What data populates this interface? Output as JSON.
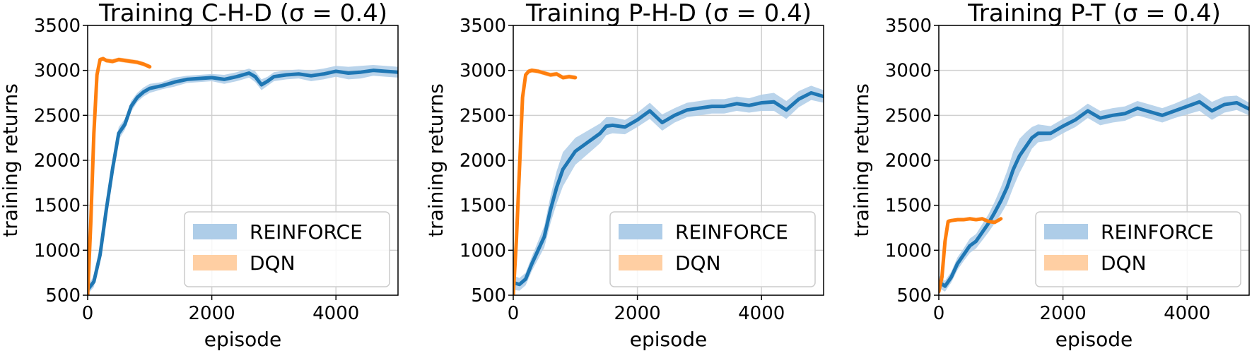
{
  "figure": {
    "type": "training-curves",
    "panel_count": 3
  },
  "chart_data": [
    {
      "type": "line",
      "title": "Training C-H-D (σ = 0.4)",
      "xlabel": "episode",
      "ylabel": "training returns",
      "xlim": [
        0,
        5000
      ],
      "ylim": [
        500,
        3500
      ],
      "xticks": [
        "0",
        "2000",
        "4000"
      ],
      "yticks": [
        "500",
        "1000",
        "1500",
        "2000",
        "2500",
        "3000",
        "3500"
      ],
      "grid": true,
      "legend_position": "lower-right",
      "legend": [
        "REINFORCE",
        "DQN"
      ],
      "series": [
        {
          "name": "REINFORCE",
          "color": "#1f77b4",
          "band_color": "#aecde8",
          "x": [
            0,
            100,
            200,
            300,
            400,
            500,
            600,
            700,
            800,
            900,
            1000,
            1200,
            1400,
            1600,
            1800,
            2000,
            2200,
            2400,
            2600,
            2700,
            2800,
            2900,
            3000,
            3200,
            3400,
            3600,
            3800,
            4000,
            4200,
            4400,
            4600,
            4800,
            5000
          ],
          "values": [
            560,
            650,
            950,
            1450,
            1900,
            2300,
            2400,
            2600,
            2700,
            2760,
            2800,
            2830,
            2870,
            2900,
            2910,
            2920,
            2900,
            2930,
            2970,
            2930,
            2840,
            2880,
            2930,
            2950,
            2960,
            2940,
            2960,
            2990,
            2970,
            2980,
            3000,
            2990,
            2980
          ],
          "band": [
            50,
            60,
            60,
            70,
            70,
            70,
            60,
            60,
            50,
            50,
            50,
            40,
            50,
            40,
            40,
            40,
            50,
            50,
            50,
            60,
            60,
            50,
            50,
            50,
            50,
            60,
            60,
            60,
            70,
            70,
            60,
            60,
            60
          ]
        },
        {
          "name": "DQN",
          "color": "#ff7f0e",
          "band_color": "#ffcfa3",
          "x": [
            0,
            50,
            100,
            150,
            200,
            250,
            300,
            400,
            500,
            600,
            700,
            800,
            900,
            1000
          ],
          "values": [
            500,
            1300,
            2300,
            2950,
            3120,
            3130,
            3110,
            3100,
            3120,
            3110,
            3100,
            3090,
            3070,
            3040
          ],
          "band": [
            20,
            30,
            30,
            30,
            25,
            25,
            25,
            25,
            25,
            25,
            25,
            25,
            25,
            25
          ]
        }
      ]
    },
    {
      "type": "line",
      "title": "Training P-H-D (σ = 0.4)",
      "xlabel": "episode",
      "ylabel": "training returns",
      "xlim": [
        0,
        5000
      ],
      "ylim": [
        500,
        3500
      ],
      "xticks": [
        "0",
        "2000",
        "4000"
      ],
      "yticks": [
        "500",
        "1000",
        "1500",
        "2000",
        "2500",
        "3000",
        "3500"
      ],
      "grid": true,
      "legend_position": "lower-right",
      "legend": [
        "REINFORCE",
        "DQN"
      ],
      "series": [
        {
          "name": "REINFORCE",
          "color": "#1f77b4",
          "band_color": "#aecde8",
          "x": [
            0,
            100,
            200,
            300,
            400,
            500,
            600,
            700,
            800,
            900,
            1000,
            1100,
            1200,
            1300,
            1400,
            1500,
            1600,
            1800,
            2000,
            2200,
            2400,
            2600,
            2800,
            3000,
            3200,
            3400,
            3600,
            3800,
            4000,
            4200,
            4400,
            4600,
            4800,
            5000
          ],
          "values": [
            640,
            620,
            680,
            850,
            1000,
            1150,
            1450,
            1700,
            1900,
            2000,
            2100,
            2150,
            2200,
            2250,
            2300,
            2380,
            2390,
            2370,
            2450,
            2550,
            2420,
            2500,
            2560,
            2580,
            2600,
            2600,
            2630,
            2610,
            2640,
            2650,
            2560,
            2680,
            2750,
            2710
          ],
          "band": [
            80,
            70,
            70,
            80,
            100,
            120,
            150,
            180,
            190,
            170,
            150,
            140,
            130,
            120,
            110,
            100,
            90,
            80,
            80,
            90,
            90,
            80,
            80,
            80,
            80,
            80,
            80,
            80,
            90,
            100,
            100,
            90,
            80,
            70
          ]
        },
        {
          "name": "DQN",
          "color": "#ff7f0e",
          "band_color": "#ffcfa3",
          "x": [
            0,
            50,
            100,
            150,
            200,
            250,
            300,
            400,
            500,
            600,
            700,
            800,
            900,
            1000
          ],
          "values": [
            500,
            1100,
            1900,
            2700,
            2950,
            2990,
            3000,
            2990,
            2970,
            2950,
            2960,
            2920,
            2930,
            2920
          ],
          "band": [
            20,
            30,
            30,
            30,
            25,
            25,
            25,
            25,
            25,
            25,
            25,
            25,
            25,
            25
          ]
        }
      ]
    },
    {
      "type": "line",
      "title": "Training P-T (σ = 0.4)",
      "xlabel": "episode",
      "ylabel": "training returns",
      "xlim": [
        0,
        5000
      ],
      "ylim": [
        500,
        3500
      ],
      "xticks": [
        "0",
        "2000",
        "4000"
      ],
      "yticks": [
        "500",
        "1000",
        "1500",
        "2000",
        "2500",
        "3000",
        "3500"
      ],
      "grid": true,
      "legend_position": "lower-right",
      "legend": [
        "REINFORCE",
        "DQN"
      ],
      "series": [
        {
          "name": "REINFORCE",
          "color": "#1f77b4",
          "band_color": "#aecde8",
          "x": [
            0,
            100,
            200,
            300,
            400,
            500,
            600,
            700,
            800,
            900,
            1000,
            1100,
            1200,
            1300,
            1400,
            1500,
            1600,
            1800,
            2000,
            2200,
            2400,
            2600,
            2800,
            3000,
            3200,
            3400,
            3600,
            3800,
            4000,
            4200,
            4400,
            4600,
            4800,
            5000
          ],
          "values": [
            650,
            600,
            700,
            850,
            950,
            1050,
            1100,
            1200,
            1300,
            1420,
            1550,
            1700,
            1900,
            2050,
            2150,
            2250,
            2300,
            2300,
            2380,
            2450,
            2550,
            2470,
            2500,
            2520,
            2580,
            2540,
            2500,
            2550,
            2600,
            2650,
            2550,
            2620,
            2640,
            2570
          ],
          "band": [
            70,
            60,
            60,
            70,
            70,
            80,
            80,
            90,
            100,
            120,
            150,
            180,
            200,
            190,
            160,
            120,
            100,
            80,
            80,
            80,
            80,
            80,
            80,
            80,
            80,
            80,
            80,
            80,
            90,
            100,
            100,
            90,
            80,
            70
          ]
        },
        {
          "name": "DQN",
          "color": "#ff7f0e",
          "band_color": "#ffcfa3",
          "x": [
            0,
            50,
            100,
            150,
            200,
            300,
            400,
            500,
            600,
            700,
            800,
            900,
            1000
          ],
          "values": [
            540,
            700,
            1100,
            1320,
            1330,
            1340,
            1340,
            1350,
            1340,
            1350,
            1320,
            1310,
            1350
          ],
          "band": [
            20,
            25,
            30,
            25,
            20,
            20,
            20,
            20,
            20,
            20,
            20,
            20,
            20
          ]
        }
      ]
    }
  ]
}
